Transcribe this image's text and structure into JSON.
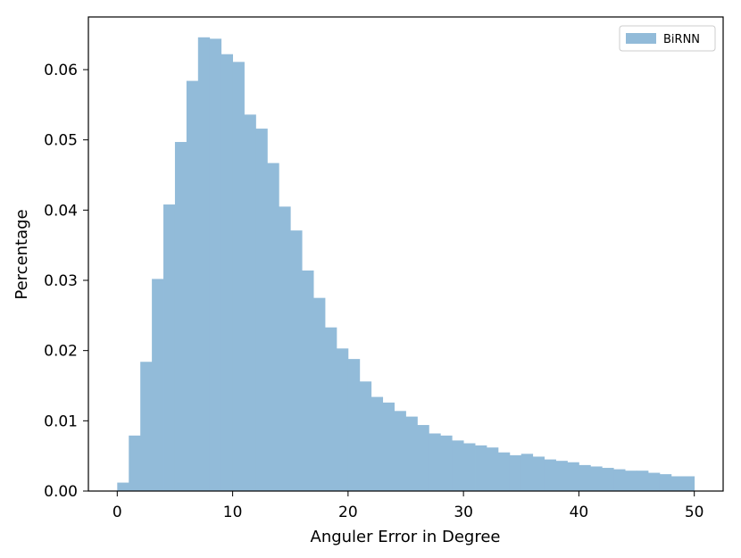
{
  "chart_data": {
    "type": "bar",
    "title": "",
    "xlabel": "Anguler Error in Degree",
    "ylabel": "Percentage",
    "xlim": [
      -2.5,
      52.5
    ],
    "ylim": [
      0.0,
      0.0675
    ],
    "xticks": [
      0,
      10,
      20,
      30,
      40,
      50
    ],
    "xtick_labels": [
      "0",
      "10",
      "20",
      "30",
      "40",
      "50"
    ],
    "yticks": [
      0.0,
      0.01,
      0.02,
      0.03,
      0.04,
      0.05,
      0.06
    ],
    "ytick_labels": [
      "0.00",
      "0.01",
      "0.02",
      "0.03",
      "0.04",
      "0.05",
      "0.06"
    ],
    "grid": false,
    "legend": {
      "position": "top-right"
    },
    "bin_start": 0,
    "bin_width": 1,
    "series": [
      {
        "name": "BiRNN",
        "color": "#92bbd9",
        "values": [
          0.0012,
          0.0079,
          0.0184,
          0.0302,
          0.0408,
          0.0497,
          0.0584,
          0.0646,
          0.0644,
          0.0622,
          0.0611,
          0.0536,
          0.0516,
          0.0467,
          0.0405,
          0.0371,
          0.0314,
          0.0275,
          0.0233,
          0.0203,
          0.0188,
          0.0156,
          0.0134,
          0.0126,
          0.0114,
          0.0106,
          0.0094,
          0.0082,
          0.0079,
          0.0072,
          0.0068,
          0.0065,
          0.0062,
          0.0055,
          0.0051,
          0.0053,
          0.0049,
          0.0045,
          0.0043,
          0.0041,
          0.0037,
          0.0035,
          0.0033,
          0.0031,
          0.0029,
          0.0029,
          0.0026,
          0.0024,
          0.0021,
          0.0021
        ]
      }
    ]
  }
}
